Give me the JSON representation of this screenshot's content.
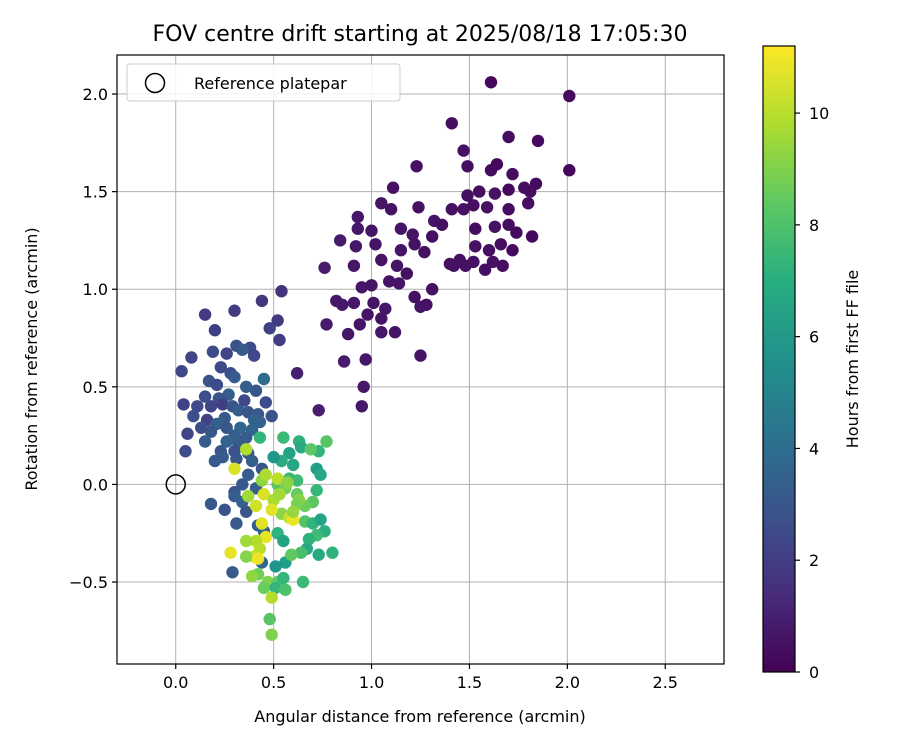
{
  "chart_data": {
    "type": "scatter",
    "title": "FOV centre drift starting at 2025/08/18 17:05:30",
    "xlabel": "Angular distance from reference (arcmin)",
    "ylabel": "Rotation from reference (arcmin)",
    "xlim": [
      -0.3,
      2.8
    ],
    "ylim": [
      -0.92,
      2.2
    ],
    "xticks": [
      "0.0",
      "0.5",
      "1.0",
      "1.5",
      "2.0",
      "2.5"
    ],
    "yticks": [
      "−0.5",
      "0.0",
      "0.5",
      "1.0",
      "1.5",
      "2.0"
    ],
    "xtick_values": [
      0,
      0.5,
      1.0,
      1.5,
      2.0,
      2.5
    ],
    "ytick_values": [
      -0.5,
      0,
      0.5,
      1.0,
      1.5,
      2.0
    ],
    "grid": true,
    "legend": {
      "placement": "upper-left",
      "entries": [
        {
          "label": "Reference platepar",
          "marker": "open-circle"
        }
      ]
    },
    "reference_point": {
      "x": 0.0,
      "y": 0.0
    },
    "colorbar": {
      "label": "Hours from first FF file",
      "colormap": "viridis",
      "range": [
        0,
        11.2
      ],
      "ticks": [
        "0",
        "2",
        "4",
        "6",
        "8",
        "10"
      ],
      "tick_values": [
        0,
        2,
        4,
        6,
        8,
        10
      ]
    },
    "points": [
      [
        1.61,
        2.06,
        0.2
      ],
      [
        2.01,
        1.99,
        0.3
      ],
      [
        1.41,
        1.85,
        0.4
      ],
      [
        1.85,
        1.76,
        0.3
      ],
      [
        1.7,
        1.78,
        0.4
      ],
      [
        1.47,
        1.71,
        0.5
      ],
      [
        1.23,
        1.63,
        0.5
      ],
      [
        1.49,
        1.63,
        0.4
      ],
      [
        1.61,
        1.61,
        0.3
      ],
      [
        1.64,
        1.64,
        0.3
      ],
      [
        1.72,
        1.59,
        0.4
      ],
      [
        2.01,
        1.61,
        0.2
      ],
      [
        1.11,
        1.52,
        0.5
      ],
      [
        1.49,
        1.48,
        0.4
      ],
      [
        1.55,
        1.5,
        0.4
      ],
      [
        1.63,
        1.49,
        0.5
      ],
      [
        1.7,
        1.51,
        0.3
      ],
      [
        1.78,
        1.52,
        0.4
      ],
      [
        1.84,
        1.54,
        0.3
      ],
      [
        1.81,
        1.5,
        0.4
      ],
      [
        1.05,
        1.44,
        0.6
      ],
      [
        1.1,
        1.41,
        0.6
      ],
      [
        1.24,
        1.42,
        0.5
      ],
      [
        1.41,
        1.41,
        0.5
      ],
      [
        1.47,
        1.41,
        0.5
      ],
      [
        1.52,
        1.43,
        0.4
      ],
      [
        1.59,
        1.42,
        0.5
      ],
      [
        1.7,
        1.41,
        0.4
      ],
      [
        1.8,
        1.44,
        0.4
      ],
      [
        0.93,
        1.37,
        0.7
      ],
      [
        1.32,
        1.35,
        0.6
      ],
      [
        1.36,
        1.33,
        0.5
      ],
      [
        1.53,
        1.31,
        0.4
      ],
      [
        1.63,
        1.32,
        0.5
      ],
      [
        1.7,
        1.33,
        0.4
      ],
      [
        1.74,
        1.29,
        0.3
      ],
      [
        1.15,
        1.31,
        0.6
      ],
      [
        0.93,
        1.31,
        0.7
      ],
      [
        1.0,
        1.3,
        0.6
      ],
      [
        1.21,
        1.28,
        0.6
      ],
      [
        1.31,
        1.27,
        0.5
      ],
      [
        1.82,
        1.27,
        0.3
      ],
      [
        0.84,
        1.25,
        0.8
      ],
      [
        1.02,
        1.23,
        0.6
      ],
      [
        1.22,
        1.23,
        0.5
      ],
      [
        1.53,
        1.22,
        0.5
      ],
      [
        1.6,
        1.2,
        0.4
      ],
      [
        1.66,
        1.23,
        0.4
      ],
      [
        1.72,
        1.2,
        0.3
      ],
      [
        0.92,
        1.22,
        0.7
      ],
      [
        1.15,
        1.2,
        0.6
      ],
      [
        1.27,
        1.19,
        0.5
      ],
      [
        1.45,
        1.15,
        0.5
      ],
      [
        1.52,
        1.14,
        0.4
      ],
      [
        1.62,
        1.14,
        0.5
      ],
      [
        1.67,
        1.12,
        0.4
      ],
      [
        0.76,
        1.11,
        0.8
      ],
      [
        0.91,
        1.12,
        0.7
      ],
      [
        1.05,
        1.15,
        0.6
      ],
      [
        1.13,
        1.12,
        0.6
      ],
      [
        1.18,
        1.08,
        0.5
      ],
      [
        1.42,
        1.12,
        0.5
      ],
      [
        1.48,
        1.12,
        0.5
      ],
      [
        1.58,
        1.1,
        0.4
      ],
      [
        1.4,
        1.13,
        0.5
      ],
      [
        1.09,
        1.04,
        0.6
      ],
      [
        1.14,
        1.03,
        0.6
      ],
      [
        1.31,
        1.0,
        0.5
      ],
      [
        0.95,
        1.01,
        0.7
      ],
      [
        1.0,
        1.02,
        0.6
      ],
      [
        1.22,
        0.96,
        0.5
      ],
      [
        1.25,
        0.91,
        0.6
      ],
      [
        1.28,
        0.92,
        0.5
      ],
      [
        0.82,
        0.94,
        0.7
      ],
      [
        0.85,
        0.92,
        0.7
      ],
      [
        0.91,
        0.93,
        0.7
      ],
      [
        1.01,
        0.93,
        0.6
      ],
      [
        1.07,
        0.9,
        0.7
      ],
      [
        0.98,
        0.87,
        0.6
      ],
      [
        1.05,
        0.85,
        0.6
      ],
      [
        0.77,
        0.82,
        0.8
      ],
      [
        0.94,
        0.82,
        0.6
      ],
      [
        0.88,
        0.77,
        0.7
      ],
      [
        1.05,
        0.78,
        0.7
      ],
      [
        1.12,
        0.78,
        0.6
      ],
      [
        0.97,
        0.64,
        0.7
      ],
      [
        0.86,
        0.63,
        0.8
      ],
      [
        1.25,
        0.66,
        0.6
      ],
      [
        0.96,
        0.5,
        0.7
      ],
      [
        0.95,
        0.4,
        0.7
      ],
      [
        0.73,
        0.38,
        0.9
      ],
      [
        0.62,
        0.57,
        1.0
      ],
      [
        0.15,
        0.87,
        1.9
      ],
      [
        0.3,
        0.89,
        2.0
      ],
      [
        0.44,
        0.94,
        1.8
      ],
      [
        0.54,
        0.99,
        1.6
      ],
      [
        0.2,
        0.79,
        2.1
      ],
      [
        0.52,
        0.84,
        1.9
      ],
      [
        0.48,
        0.8,
        2.2
      ],
      [
        0.53,
        0.74,
        2.0
      ],
      [
        0.38,
        0.7,
        2.5
      ],
      [
        0.26,
        0.67,
        2.3
      ],
      [
        0.31,
        0.71,
        2.8
      ],
      [
        0.34,
        0.69,
        3.2
      ],
      [
        0.19,
        0.68,
        2.6
      ],
      [
        0.08,
        0.65,
        2.3
      ],
      [
        0.4,
        0.66,
        2.4
      ],
      [
        0.23,
        0.6,
        2.5
      ],
      [
        0.03,
        0.58,
        2.4
      ],
      [
        0.28,
        0.57,
        2.7
      ],
      [
        0.3,
        0.55,
        3.2
      ],
      [
        0.17,
        0.53,
        2.9
      ],
      [
        0.21,
        0.51,
        2.5
      ],
      [
        0.36,
        0.5,
        3.3
      ],
      [
        0.45,
        0.54,
        3.9
      ],
      [
        0.41,
        0.48,
        3.0
      ],
      [
        0.27,
        0.46,
        3.3
      ],
      [
        0.15,
        0.45,
        2.7
      ],
      [
        0.22,
        0.44,
        2.8
      ],
      [
        0.35,
        0.43,
        2.4
      ],
      [
        0.46,
        0.42,
        2.6
      ],
      [
        0.04,
        0.41,
        2.2
      ],
      [
        0.11,
        0.4,
        2.5
      ],
      [
        0.18,
        0.4,
        2.3
      ],
      [
        0.24,
        0.41,
        2.1
      ],
      [
        0.29,
        0.4,
        2.9
      ],
      [
        0.32,
        0.38,
        3.3
      ],
      [
        0.37,
        0.37,
        3.0
      ],
      [
        0.42,
        0.36,
        3.1
      ],
      [
        0.49,
        0.35,
        2.8
      ],
      [
        0.09,
        0.35,
        2.7
      ],
      [
        0.16,
        0.33,
        2.2
      ],
      [
        0.25,
        0.34,
        3.1
      ],
      [
        0.4,
        0.33,
        3.5
      ],
      [
        0.43,
        0.32,
        3.5
      ],
      [
        0.21,
        0.31,
        3.4
      ],
      [
        0.13,
        0.29,
        2.6
      ],
      [
        0.26,
        0.29,
        3.0
      ],
      [
        0.33,
        0.29,
        3.7
      ],
      [
        0.39,
        0.28,
        3.6
      ],
      [
        0.06,
        0.26,
        2.3
      ],
      [
        0.18,
        0.27,
        3.0
      ],
      [
        0.3,
        0.25,
        3.3
      ],
      [
        0.36,
        0.24,
        3.2
      ],
      [
        0.15,
        0.22,
        3.2
      ],
      [
        0.26,
        0.22,
        3.6
      ],
      [
        0.32,
        0.21,
        3.3
      ],
      [
        0.05,
        0.17,
        2.6
      ],
      [
        0.23,
        0.17,
        3.0
      ],
      [
        0.3,
        0.17,
        2.8
      ],
      [
        0.37,
        0.16,
        3.1
      ],
      [
        0.24,
        0.14,
        3.2
      ],
      [
        0.31,
        0.13,
        3.0
      ],
      [
        0.39,
        0.12,
        3.3
      ],
      [
        0.2,
        0.12,
        3.1
      ],
      [
        0.44,
        0.08,
        3.0
      ],
      [
        0.37,
        0.05,
        3.3
      ],
      [
        0.34,
        0.0,
        3.1
      ],
      [
        0.3,
        -0.04,
        2.8
      ],
      [
        0.41,
        -0.02,
        3.3
      ],
      [
        0.3,
        -0.06,
        3.3
      ],
      [
        0.34,
        -0.09,
        3.4
      ],
      [
        0.18,
        -0.1,
        3.0
      ],
      [
        0.25,
        -0.13,
        2.9
      ],
      [
        0.36,
        -0.14,
        3.0
      ],
      [
        0.31,
        -0.2,
        3.1
      ],
      [
        0.42,
        -0.21,
        3.3
      ],
      [
        0.45,
        -0.24,
        3.6
      ],
      [
        0.29,
        -0.45,
        3.2
      ],
      [
        0.44,
        -0.4,
        3.6
      ],
      [
        0.55,
        0.24,
        7.6
      ],
      [
        0.63,
        0.22,
        7.1
      ],
      [
        0.64,
        0.19,
        6.8
      ],
      [
        0.77,
        0.22,
        8.2
      ],
      [
        0.73,
        0.17,
        7.3
      ],
      [
        0.58,
        0.16,
        6.4
      ],
      [
        0.54,
        0.12,
        6.9
      ],
      [
        0.5,
        0.14,
        5.9
      ],
      [
        0.6,
        0.1,
        6.6
      ],
      [
        0.72,
        0.08,
        6.2
      ],
      [
        0.74,
        0.05,
        6.7
      ],
      [
        0.58,
        0.03,
        7.6
      ],
      [
        0.62,
        0.02,
        7.7
      ],
      [
        0.52,
        0.0,
        8.3
      ],
      [
        0.56,
        -0.02,
        8.8
      ],
      [
        0.62,
        -0.05,
        8.5
      ],
      [
        0.72,
        -0.03,
        7.4
      ],
      [
        0.7,
        -0.09,
        8.3
      ],
      [
        0.66,
        -0.11,
        8.6
      ],
      [
        0.63,
        -0.08,
        9.2
      ],
      [
        0.45,
        -0.05,
        10.6
      ],
      [
        0.5,
        -0.08,
        9.8
      ],
      [
        0.54,
        -0.15,
        9.2
      ],
      [
        0.58,
        -0.17,
        10.2
      ],
      [
        0.66,
        -0.19,
        8.1
      ],
      [
        0.7,
        -0.2,
        7.3
      ],
      [
        0.74,
        -0.18,
        6.5
      ],
      [
        0.76,
        -0.24,
        7.0
      ],
      [
        0.72,
        -0.26,
        7.7
      ],
      [
        0.68,
        -0.28,
        7.2
      ],
      [
        0.67,
        -0.33,
        6.8
      ],
      [
        0.64,
        -0.35,
        7.9
      ],
      [
        0.8,
        -0.35,
        7.2
      ],
      [
        0.73,
        -0.36,
        6.7
      ],
      [
        0.56,
        -0.4,
        6.3
      ],
      [
        0.51,
        -0.42,
        5.8
      ],
      [
        0.46,
        -0.27,
        10.8
      ],
      [
        0.41,
        -0.29,
        9.9
      ],
      [
        0.36,
        -0.29,
        9.6
      ],
      [
        0.43,
        -0.33,
        10.0
      ],
      [
        0.4,
        -0.37,
        10.3
      ],
      [
        0.36,
        -0.37,
        9.1
      ],
      [
        0.28,
        -0.35,
        10.8
      ],
      [
        0.42,
        -0.38,
        10.9
      ],
      [
        0.42,
        -0.46,
        8.7
      ],
      [
        0.39,
        -0.47,
        9.3
      ],
      [
        0.47,
        -0.5,
        9.0
      ],
      [
        0.52,
        -0.5,
        8.5
      ],
      [
        0.55,
        -0.48,
        7.4
      ],
      [
        0.45,
        -0.53,
        8.6
      ],
      [
        0.51,
        -0.53,
        7.4
      ],
      [
        0.56,
        -0.54,
        8.0
      ],
      [
        0.49,
        -0.58,
        9.9
      ],
      [
        0.65,
        -0.5,
        7.6
      ],
      [
        0.48,
        -0.69,
        8.2
      ],
      [
        0.49,
        -0.77,
        9.0
      ],
      [
        0.44,
        -0.2,
        10.7
      ],
      [
        0.41,
        -0.11,
        10.4
      ],
      [
        0.37,
        -0.06,
        9.6
      ],
      [
        0.44,
        0.02,
        9.3
      ],
      [
        0.52,
        0.03,
        10.1
      ],
      [
        0.6,
        -0.18,
        10.9
      ],
      [
        0.3,
        0.08,
        10.6
      ],
      [
        0.36,
        0.18,
        9.9
      ],
      [
        0.43,
        0.24,
        7.4
      ],
      [
        0.49,
        -0.13,
        10.7
      ],
      [
        0.53,
        -0.05,
        9.6
      ],
      [
        0.57,
        0.01,
        9.2
      ],
      [
        0.62,
        -0.1,
        8.9
      ],
      [
        0.6,
        -0.14,
        9.4
      ],
      [
        0.46,
        0.05,
        9.8
      ],
      [
        0.52,
        -0.25,
        7.2
      ],
      [
        0.55,
        -0.29,
        6.5
      ],
      [
        0.59,
        -0.36,
        8.4
      ],
      [
        0.69,
        0.18,
        8.3
      ]
    ]
  }
}
